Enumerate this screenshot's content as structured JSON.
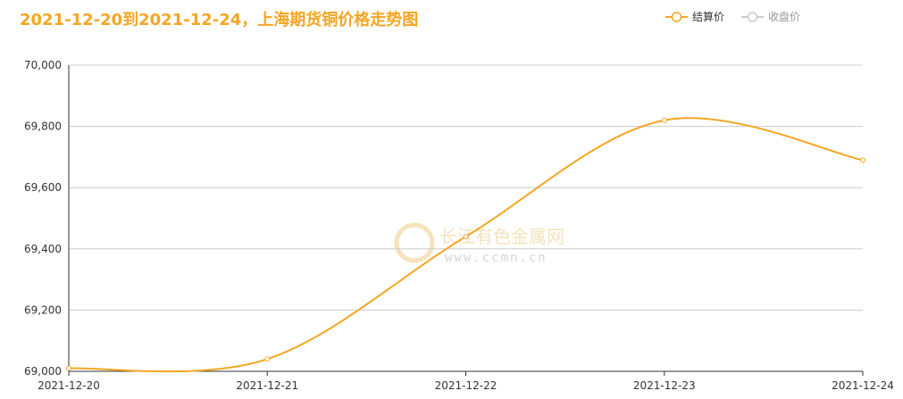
{
  "chart_data": {
    "type": "line",
    "title": "2021-12-20到2021-12-24，上海期货铜价格走势图",
    "categories": [
      "2021-12-20",
      "2021-12-21",
      "2021-12-22",
      "2021-12-23",
      "2021-12-24"
    ],
    "series": [
      {
        "name": "结算价",
        "color": "#f5a623",
        "values": [
          69010,
          69040,
          69440,
          69820,
          69690
        ]
      },
      {
        "name": "收盘价",
        "color": "#cccccc",
        "values": [
          null,
          null,
          null,
          null,
          null
        ]
      }
    ],
    "ylim": [
      69000,
      70000
    ],
    "yticks": [
      {
        "value": 69000,
        "label": "69,000"
      },
      {
        "value": 69200,
        "label": "69,200"
      },
      {
        "value": 69400,
        "label": "69,400"
      },
      {
        "value": 69600,
        "label": "69,600"
      },
      {
        "value": 69800,
        "label": "69,800"
      },
      {
        "value": 70000,
        "label": "70,000"
      }
    ],
    "grid": true,
    "watermark": {
      "name": "长江有色金属网",
      "url": "www.ccmn.cn"
    }
  }
}
